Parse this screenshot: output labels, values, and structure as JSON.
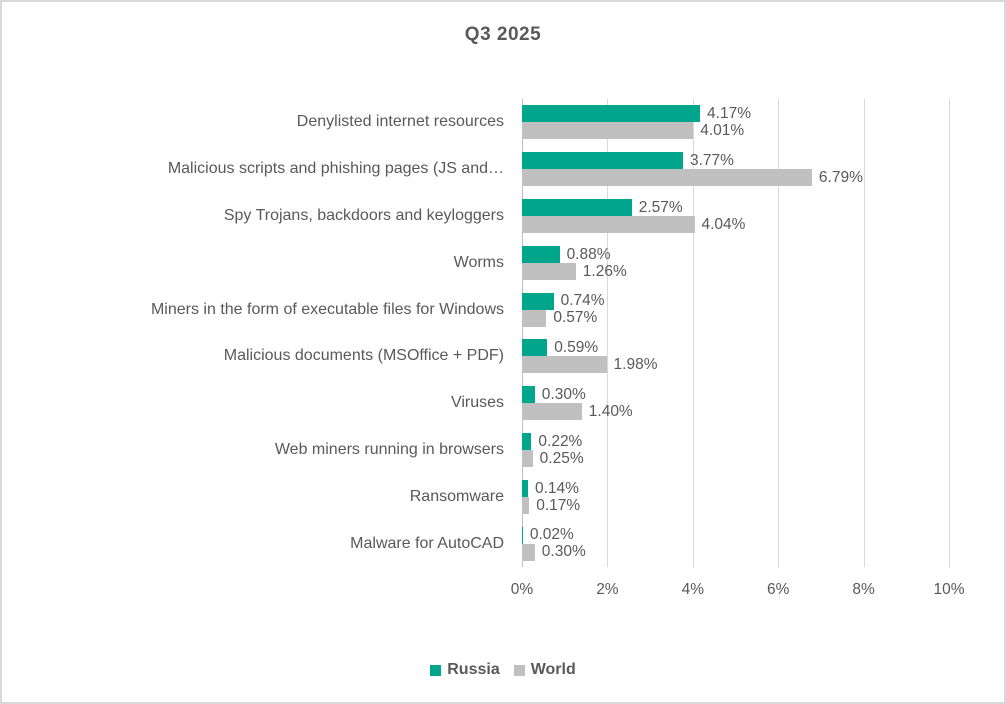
{
  "chart_data": {
    "type": "bar",
    "orientation": "horizontal",
    "title": "Q3 2025",
    "categories": [
      "Denylisted internet resources",
      "Malicious scripts and phishing pages (JS and…",
      "Spy Trojans, backdoors and keyloggers",
      "Worms",
      "Miners in the form of executable files for Windows",
      "Malicious documents (MSOffice + PDF)",
      "Viruses",
      "Web miners running in browsers",
      "Ransomware",
      "Malware for AutoCAD"
    ],
    "series": [
      {
        "name": "Russia",
        "color": "#00a68c",
        "values": [
          4.17,
          3.77,
          2.57,
          0.88,
          0.74,
          0.59,
          0.3,
          0.22,
          0.14,
          0.02
        ]
      },
      {
        "name": "World",
        "color": "#c0c0c0",
        "values": [
          4.01,
          6.79,
          4.04,
          1.26,
          0.57,
          1.98,
          1.4,
          0.25,
          0.17,
          0.3
        ]
      }
    ],
    "value_labels": [
      [
        "4.17%",
        "3.77%",
        "2.57%",
        "0.88%",
        "0.74%",
        "0.59%",
        "0.30%",
        "0.22%",
        "0.14%",
        "0.02%"
      ],
      [
        "4.01%",
        "6.79%",
        "4.04%",
        "1.26%",
        "0.57%",
        "1.98%",
        "1.40%",
        "0.25%",
        "0.17%",
        "0.30%"
      ]
    ],
    "x_axis": {
      "min": 0,
      "max": 10,
      "ticks": [
        "0%",
        "2%",
        "4%",
        "6%",
        "8%",
        "10%"
      ]
    },
    "grid": true,
    "legend_position": "bottom",
    "colors": {
      "text": "#595959",
      "gridline": "#d9d9d9",
      "axis_line": "#bfbfbf",
      "border": "#d9d9d9"
    }
  }
}
